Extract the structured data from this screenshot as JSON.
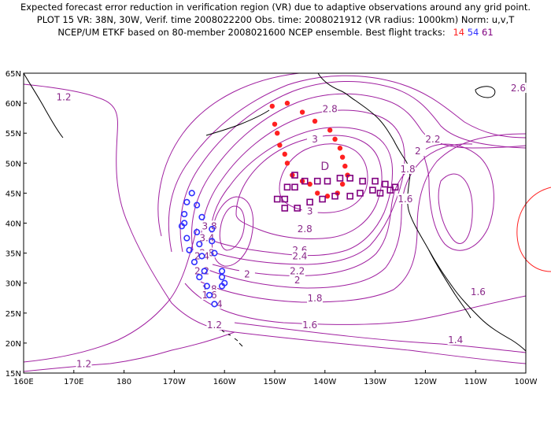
{
  "header": {
    "line1": "Expected forecast error reduction in verification region (VR) due to adaptive observations around any grid point.",
    "line2": "PLOT 15 VR: 38N, 30W, Verif. time 2008022200 Obs. time: 2008021912 (VR radius: 1000km) Norm: u,v,T",
    "line3_prefix": "NCEP/UM ETKF based on 80-member 2008021600 NCEP ensemble.  Best flight tracks:",
    "tracks": [
      {
        "label": "14",
        "color": "#ff2020"
      },
      {
        "label": "54",
        "color": "#3030ff"
      },
      {
        "label": "61",
        "color": "#800080"
      }
    ]
  },
  "colors": {
    "contour": "#a020a0",
    "contour_label": "#8a2a8a",
    "coastline": "#000000",
    "vr_circle": "#ff2020"
  },
  "axes": {
    "lat_labels": [
      "65N",
      "60N",
      "55N",
      "50N",
      "45N",
      "40N",
      "35N",
      "30N",
      "25N",
      "20N",
      "15N"
    ],
    "lon_labels": [
      "160E",
      "170E",
      "180",
      "170W",
      "160W",
      "150W",
      "140W",
      "130W",
      "120W",
      "110W",
      "100W"
    ]
  },
  "map": {
    "lat_range": [
      15,
      65
    ],
    "lon_range": [
      160,
      260
    ],
    "max_label": "D",
    "contour_labels": [
      {
        "text": "1.2",
        "lon": 168,
        "lat": 61
      },
      {
        "text": "2.6",
        "lon": 258.5,
        "lat": 62.5
      },
      {
        "text": "2.8",
        "lon": 221,
        "lat": 59
      },
      {
        "text": "3",
        "lon": 218,
        "lat": 54
      },
      {
        "text": "2.2",
        "lon": 241.5,
        "lat": 54
      },
      {
        "text": "2",
        "lon": 238.5,
        "lat": 52
      },
      {
        "text": "1.8",
        "lon": 236.5,
        "lat": 49
      },
      {
        "text": "1.6",
        "lon": 236,
        "lat": 44
      },
      {
        "text": "3",
        "lon": 217,
        "lat": 42
      },
      {
        "text": "2.8",
        "lon": 216,
        "lat": 39
      },
      {
        "text": "2.6",
        "lon": 215,
        "lat": 35.5
      },
      {
        "text": "2.4",
        "lon": 215,
        "lat": 34.5
      },
      {
        "text": "2.2",
        "lon": 214.5,
        "lat": 32
      },
      {
        "text": "2",
        "lon": 204.5,
        "lat": 31.5
      },
      {
        "text": "2",
        "lon": 214.5,
        "lat": 30.5
      },
      {
        "text": "1.8",
        "lon": 218,
        "lat": 27.5
      },
      {
        "text": "1.6",
        "lon": 217,
        "lat": 23
      },
      {
        "text": "1.6",
        "lon": 250.5,
        "lat": 28.5
      },
      {
        "text": "1.4",
        "lon": 246,
        "lat": 20.5
      },
      {
        "text": "1.2",
        "lon": 198,
        "lat": 23
      },
      {
        "text": "1.2",
        "lon": 172,
        "lat": 16.5
      },
      {
        "text": "3.8",
        "lon": 197,
        "lat": 39.5
      },
      {
        "text": "3.4",
        "lon": 196.5,
        "lat": 37.5
      },
      {
        "text": "2.8",
        "lon": 196.5,
        "lat": 35
      },
      {
        "text": "2.4",
        "lon": 195.5,
        "lat": 34.5
      },
      {
        "text": "2.2",
        "lon": 195.5,
        "lat": 32
      },
      {
        "text": "1.8",
        "lon": 197,
        "lat": 29
      },
      {
        "text": "1.6",
        "lon": 197,
        "lat": 28
      },
      {
        "text": "4",
        "lon": 199,
        "lat": 26.5
      }
    ],
    "track_red": [
      {
        "lon": 209.5,
        "lat": 59.5
      },
      {
        "lon": 212.5,
        "lat": 60
      },
      {
        "lon": 215.5,
        "lat": 58.5
      },
      {
        "lon": 218,
        "lat": 57
      },
      {
        "lon": 221,
        "lat": 55.5
      },
      {
        "lon": 222,
        "lat": 54
      },
      {
        "lon": 223,
        "lat": 52.5
      },
      {
        "lon": 223.5,
        "lat": 51
      },
      {
        "lon": 224,
        "lat": 49.5
      },
      {
        "lon": 224.5,
        "lat": 48
      },
      {
        "lon": 223.5,
        "lat": 46.5
      },
      {
        "lon": 222.5,
        "lat": 45
      },
      {
        "lon": 220.5,
        "lat": 44.5
      },
      {
        "lon": 218.5,
        "lat": 45
      },
      {
        "lon": 217,
        "lat": 46.5
      },
      {
        "lon": 215.5,
        "lat": 47
      },
      {
        "lon": 213.5,
        "lat": 48
      },
      {
        "lon": 212.5,
        "lat": 50
      },
      {
        "lon": 212,
        "lat": 51.5
      },
      {
        "lon": 211,
        "lat": 53
      },
      {
        "lon": 210.5,
        "lat": 55
      },
      {
        "lon": 210,
        "lat": 56.5
      }
    ],
    "track_blue": [
      {
        "lon": 193.5,
        "lat": 45
      },
      {
        "lon": 192.5,
        "lat": 43.5
      },
      {
        "lon": 194.5,
        "lat": 43
      },
      {
        "lon": 192,
        "lat": 41.5
      },
      {
        "lon": 195.5,
        "lat": 41
      },
      {
        "lon": 192,
        "lat": 40
      },
      {
        "lon": 191.5,
        "lat": 39.5
      },
      {
        "lon": 197.5,
        "lat": 39
      },
      {
        "lon": 194.5,
        "lat": 38.5
      },
      {
        "lon": 192.5,
        "lat": 37.5
      },
      {
        "lon": 197.5,
        "lat": 37
      },
      {
        "lon": 195,
        "lat": 36.5
      },
      {
        "lon": 193,
        "lat": 35.5
      },
      {
        "lon": 198,
        "lat": 35
      },
      {
        "lon": 195.5,
        "lat": 34.5
      },
      {
        "lon": 194,
        "lat": 33.5
      },
      {
        "lon": 199.5,
        "lat": 32
      },
      {
        "lon": 196,
        "lat": 32
      },
      {
        "lon": 195,
        "lat": 31
      },
      {
        "lon": 199.5,
        "lat": 31
      },
      {
        "lon": 196.5,
        "lat": 29.5
      },
      {
        "lon": 200,
        "lat": 30
      },
      {
        "lon": 199.5,
        "lat": 29.5
      },
      {
        "lon": 197,
        "lat": 28
      },
      {
        "lon": 198,
        "lat": 26.5
      }
    ],
    "track_purple": [
      {
        "lon": 214,
        "lat": 48
      },
      {
        "lon": 216,
        "lat": 47
      },
      {
        "lon": 218.5,
        "lat": 47
      },
      {
        "lon": 220.5,
        "lat": 47
      },
      {
        "lon": 223,
        "lat": 47.5
      },
      {
        "lon": 225,
        "lat": 47.5
      },
      {
        "lon": 227.5,
        "lat": 47
      },
      {
        "lon": 230,
        "lat": 47
      },
      {
        "lon": 232,
        "lat": 46.5
      },
      {
        "lon": 234,
        "lat": 46
      },
      {
        "lon": 233,
        "lat": 45.5
      },
      {
        "lon": 229.5,
        "lat": 45.5
      },
      {
        "lon": 227,
        "lat": 45
      },
      {
        "lon": 225,
        "lat": 44.5
      },
      {
        "lon": 222,
        "lat": 44.5
      },
      {
        "lon": 219.5,
        "lat": 44
      },
      {
        "lon": 217,
        "lat": 43.5
      },
      {
        "lon": 214.5,
        "lat": 42.5
      },
      {
        "lon": 212,
        "lat": 42.5
      },
      {
        "lon": 210.5,
        "lat": 44
      },
      {
        "lon": 212,
        "lat": 44
      },
      {
        "lon": 212.5,
        "lat": 46
      },
      {
        "lon": 214,
        "lat": 46
      },
      {
        "lon": 231,
        "lat": 45
      }
    ]
  }
}
